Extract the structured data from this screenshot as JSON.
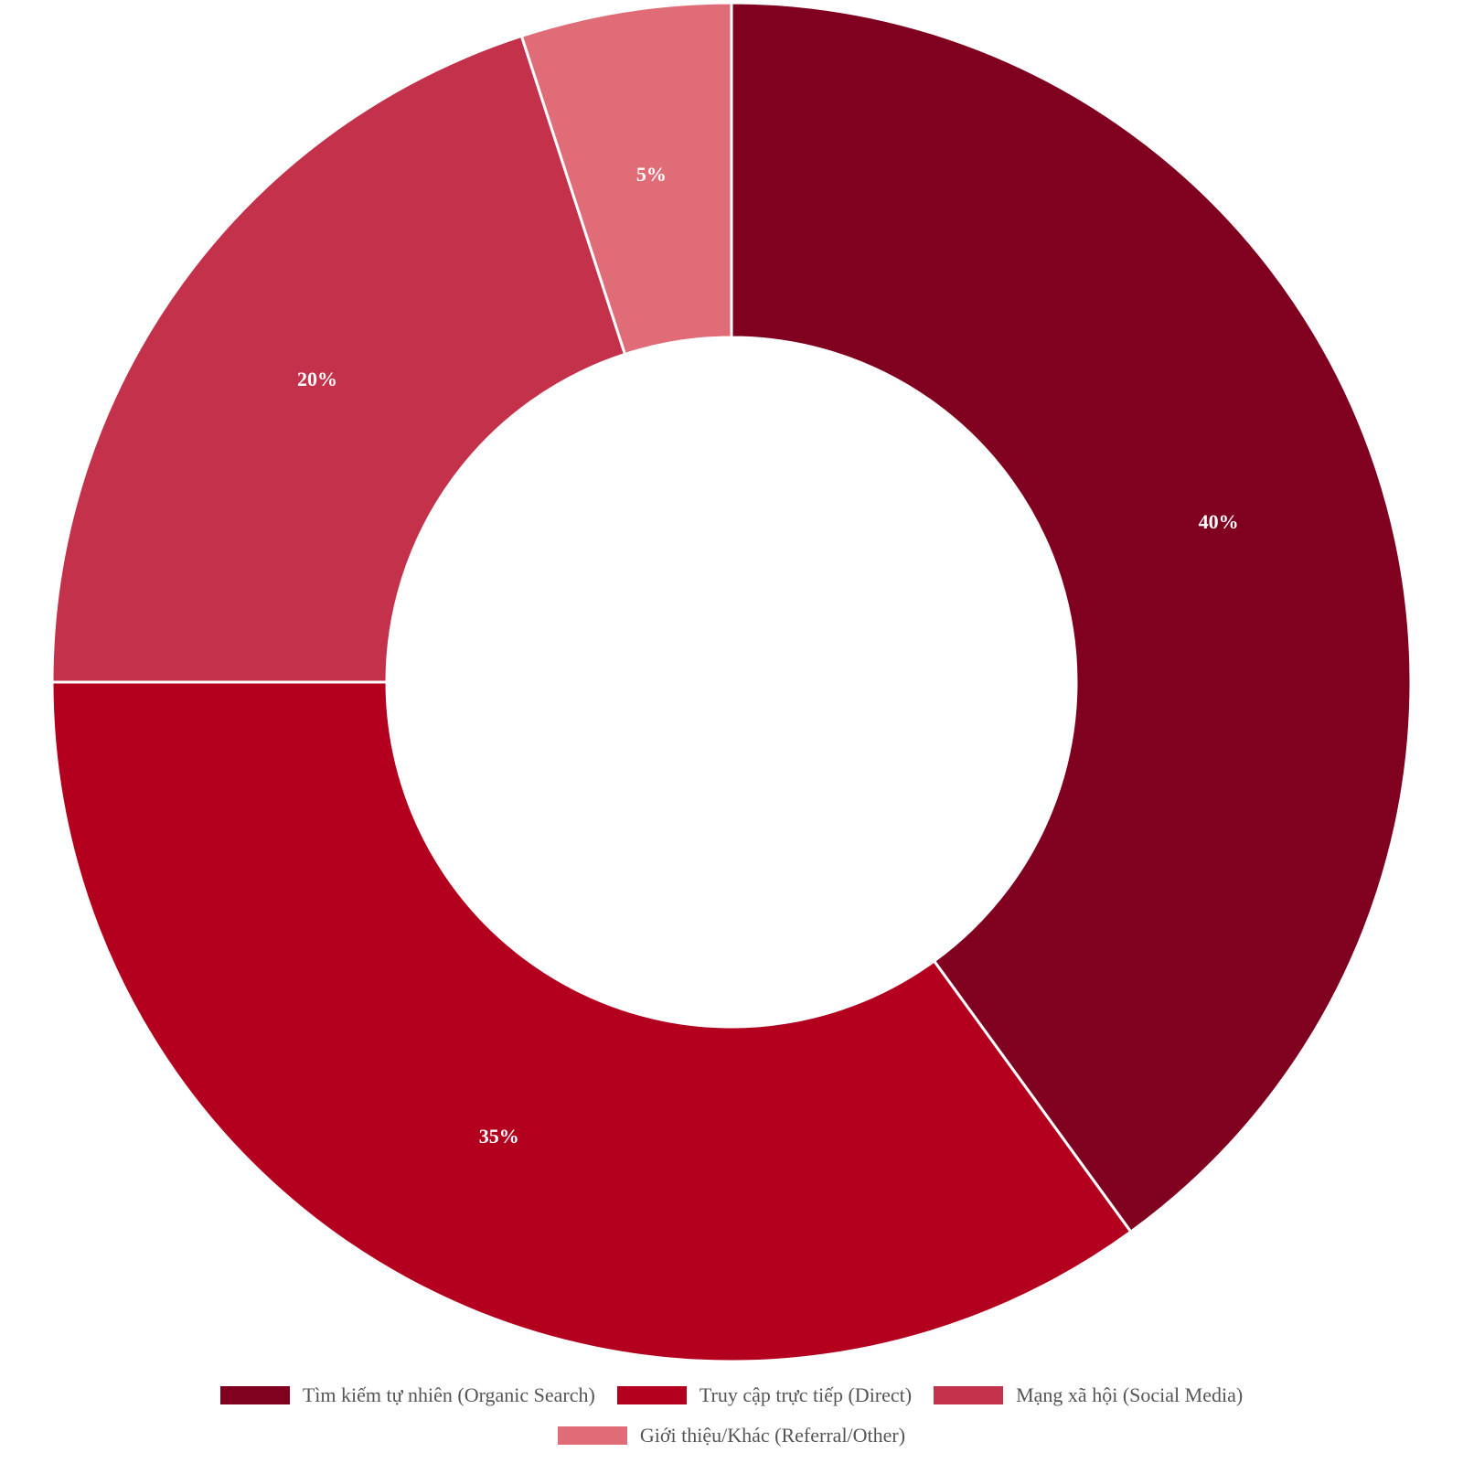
{
  "chart_data": {
    "type": "pie",
    "variant": "donut",
    "title": "",
    "categories": [
      "Tìm kiếm tự nhiên (Organic Search)",
      "Truy cập trực tiếp (Direct)",
      "Mạng xã hội (Social Media)",
      "Giới thiệu/Khác (Referral/Other)"
    ],
    "values": [
      40,
      35,
      20,
      5
    ],
    "value_labels": [
      "40%",
      "35%",
      "20%",
      "5%"
    ],
    "colors": [
      "#800020",
      "#B3001F",
      "#C3324A",
      "#E06C78"
    ],
    "legend_position": "bottom"
  }
}
